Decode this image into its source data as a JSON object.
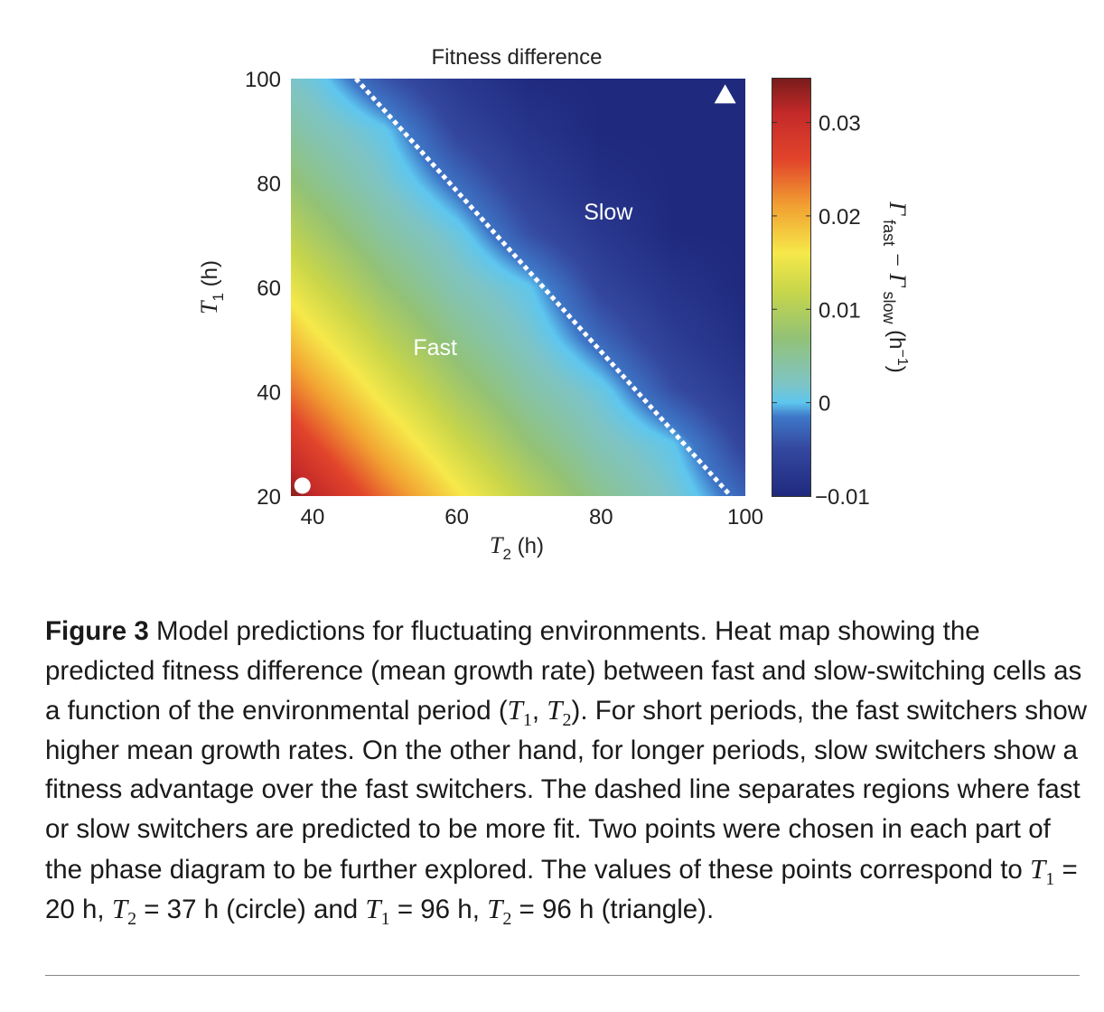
{
  "chart_data": {
    "type": "heatmap",
    "title": "Fitness difference",
    "xlabel_var": "T",
    "xlabel_sub": "2",
    "xlabel_unit": "(h)",
    "ylabel_var": "T",
    "ylabel_sub": "1",
    "ylabel_unit": "(h)",
    "xlim": [
      37,
      100
    ],
    "ylim": [
      20,
      100
    ],
    "xticks": [
      "40",
      "60",
      "80",
      "100"
    ],
    "xtick_values": [
      40,
      60,
      80,
      100
    ],
    "yticks": [
      "20",
      "40",
      "60",
      "80",
      "100"
    ],
    "ytick_values": [
      20,
      40,
      60,
      80,
      100
    ],
    "grid_x_T2": [
      37,
      40,
      50,
      60,
      70,
      80,
      90,
      100
    ],
    "grid_y_T1": [
      20,
      30,
      40,
      50,
      60,
      70,
      80,
      90,
      100
    ],
    "z": [
      [
        0.034,
        0.0315,
        0.0237,
        0.0167,
        0.0106,
        0.0054,
        0.0016,
        -0.003
      ],
      [
        0.0287,
        0.0264,
        0.0191,
        0.0126,
        0.0071,
        0.0028,
        0.0001,
        -0.0057
      ],
      [
        0.0237,
        0.0216,
        0.0148,
        0.0089,
        0.0041,
        0.0008,
        -0.0044,
        -0.0076
      ],
      [
        0.0191,
        0.017,
        0.0109,
        0.0057,
        0.0018,
        -0.0027,
        -0.0067,
        -0.0092
      ],
      [
        0.0148,
        0.0129,
        0.0074,
        0.003,
        0.0002,
        -0.0055,
        -0.0084,
        -0.01
      ],
      [
        0.0109,
        0.0092,
        0.0044,
        0.0009,
        -0.0042,
        -0.0075,
        -0.0099,
        -0.01
      ],
      [
        0.0074,
        0.0059,
        0.0019,
        -0.0023,
        -0.0065,
        -0.0091,
        -0.01,
        -0.01
      ],
      [
        0.0044,
        0.0032,
        0.0003,
        -0.0054,
        -0.0083,
        -0.01,
        -0.01,
        -0.01
      ],
      [
        0.0019,
        0.001,
        -0.004,
        -0.0074,
        -0.0098,
        -0.01,
        -0.01,
        -0.01
      ]
    ],
    "boundary_line": [
      {
        "T2": 46,
        "T1": 100
      },
      {
        "T2": 98,
        "T1": 20
      }
    ],
    "region_labels": [
      {
        "text": "Slow",
        "T2": 81,
        "T1": 73
      },
      {
        "text": "Fast",
        "T2": 57,
        "T1": 47
      }
    ],
    "markers": [
      {
        "shape": "circle",
        "T2": 38.6,
        "T1": 22
      },
      {
        "shape": "triangle",
        "T2": 97.2,
        "T1": 97
      }
    ],
    "colorbar": {
      "range": [
        -0.01,
        0.0347
      ],
      "ticks": [
        "-0.01",
        "0",
        "0.01",
        "0.02",
        "0.03"
      ],
      "tick_values": [
        -0.01,
        0,
        0.01,
        0.02,
        0.03
      ],
      "label_main": "Γ",
      "label_sub1": "fast",
      "label_minus": " − Γ",
      "label_sub2": "slow",
      "label_unit": " (h",
      "label_exp": "−1",
      "label_close": ")",
      "stops": [
        [
          -0.01,
          "#1f2a7e"
        ],
        [
          -0.005,
          "#34479f"
        ],
        [
          -0.0015,
          "#3f78c8"
        ],
        [
          0.0,
          "#5ec6ef"
        ],
        [
          0.002,
          "#7ec4c6"
        ],
        [
          0.007,
          "#93c276"
        ],
        [
          0.012,
          "#c9d64a"
        ],
        [
          0.016,
          "#f6e94a"
        ],
        [
          0.021,
          "#f2a232"
        ],
        [
          0.026,
          "#e2452b"
        ],
        [
          0.031,
          "#c42a29"
        ],
        [
          0.0347,
          "#7a1c1c"
        ]
      ]
    }
  },
  "caption": {
    "fig_label": "Figure 3",
    "t1": " Model predictions for fluctuating environments. Heat map showing the predicted fitness difference (mean growth rate) between fast and slow-switching cells as a function of the environmental period (",
    "T": "T",
    "s1": "1",
    "s2": "2",
    "comma": ", ",
    "t2": "). For short periods, the fast switchers show higher mean growth rates. On the other hand, for longer periods, slow switchers show a fitness advantage over the fast switchers. The dashed line separates regions where fast or slow switchers are predicted to be more fit. Two points were chosen in each part of the phase diagram to be further explored. The values of these points correspond to ",
    "eq20": " = 20 h, ",
    "eq37": " = 37 h (circle) and ",
    "eq96a": " = 96 h, ",
    "eq96b": " = 96 h (triangle)."
  }
}
